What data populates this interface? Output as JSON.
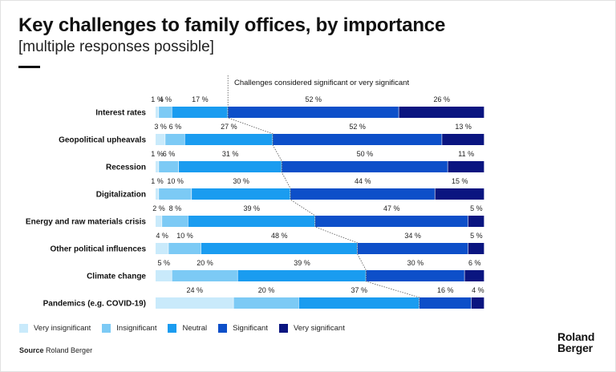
{
  "title": "Key challenges to family offices, by importance",
  "subtitle": "[multiple responses possible]",
  "source_label": "Source",
  "source_text": "Roland Berger",
  "logo": {
    "line1": "Roland",
    "line2": "Berger"
  },
  "colors": {
    "very_insignificant": "#c9eafb",
    "insignificant": "#7ccaf5",
    "neutral": "#1a9cf0",
    "significant": "#0d4fc9",
    "very_significant": "#0a1580"
  },
  "chart_data": {
    "type": "bar",
    "orientation": "horizontal",
    "stacked": true,
    "normalized": true,
    "value_unit": "%",
    "annotation": "Challenges considered significant or very significant",
    "categories": [
      "Interest rates",
      "Geopolitical upheavals",
      "Recession",
      "Digitalization",
      "Energy and raw materials crisis",
      "Other political influences",
      "Climate change",
      "Pandemics (e.g. COVID-19)"
    ],
    "series": [
      {
        "name": "Very insignificant",
        "values": [
          1,
          3,
          1,
          1,
          2,
          4,
          5,
          24
        ]
      },
      {
        "name": "Insignificant",
        "values": [
          4,
          6,
          6,
          10,
          8,
          10,
          20,
          20
        ]
      },
      {
        "name": "Neutral",
        "values": [
          17,
          27,
          31,
          30,
          39,
          48,
          39,
          37
        ]
      },
      {
        "name": "Significant",
        "values": [
          52,
          52,
          50,
          44,
          47,
          34,
          30,
          16
        ]
      },
      {
        "name": "Very significant",
        "values": [
          26,
          13,
          11,
          15,
          5,
          5,
          6,
          4
        ]
      }
    ],
    "legend_position": "bottom-left",
    "grid": false
  }
}
